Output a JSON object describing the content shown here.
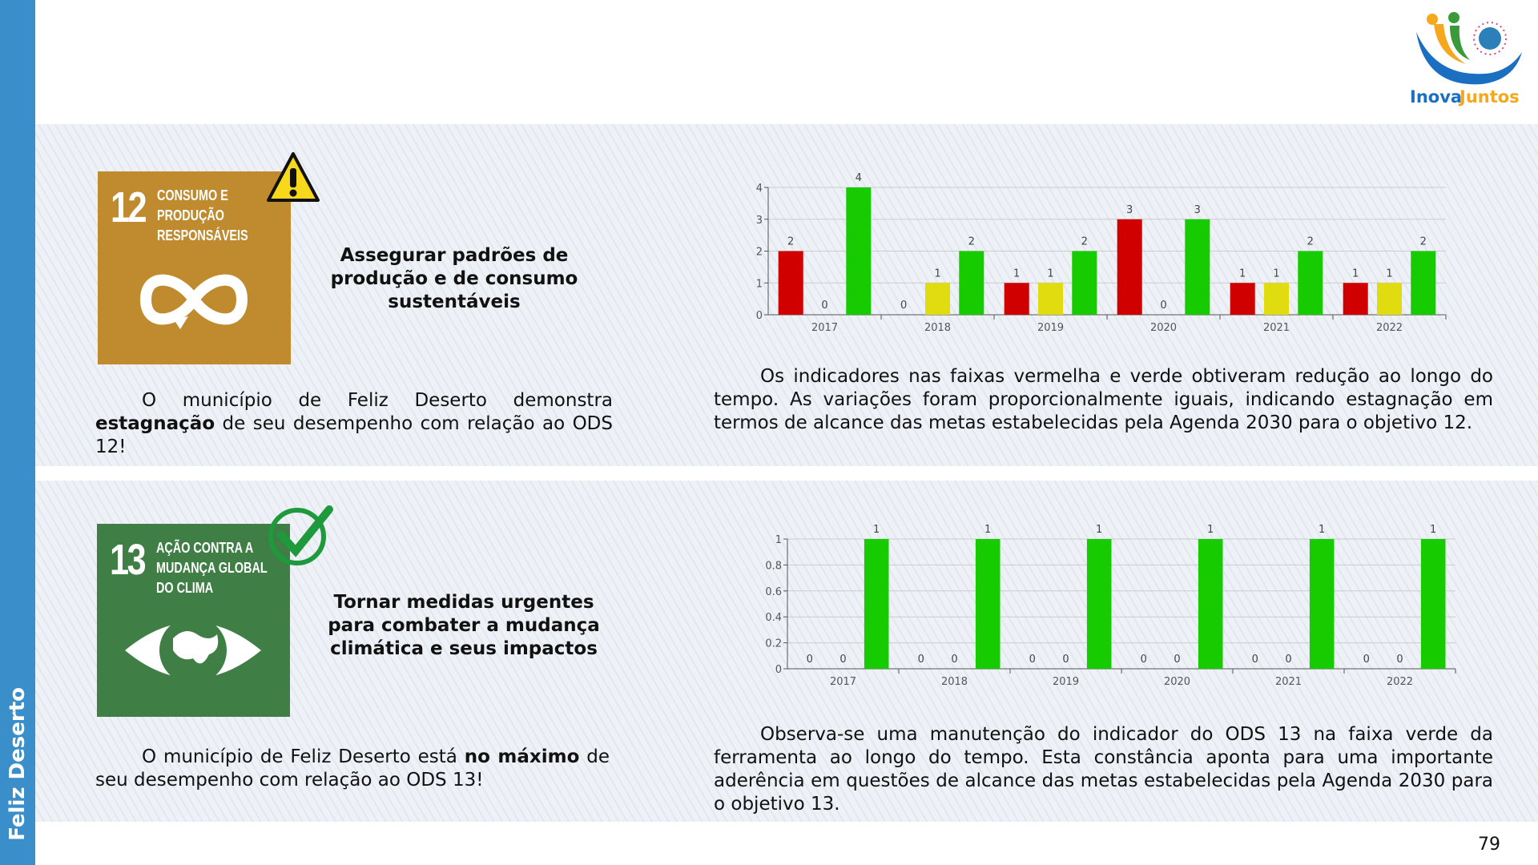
{
  "sidebar": {
    "municipality": "Feliz Deserto"
  },
  "logo": {
    "text_a": "Inova",
    "text_b": "Juntos"
  },
  "page_number": "79",
  "ods12": {
    "number": "12",
    "title": "CONSUMO E\nPRODUÇÃO\nRESPONSÁVEIS",
    "status_icon": "warning-icon",
    "heading": "Assegurar padrões de\nprodução e de consumo\nsustentáveis",
    "text_a": "O município de Feliz Deserto demonstra ",
    "text_bold": "estagnação",
    "text_b": " de seu desempenho com relação ao ODS 12!",
    "analysis": "Os indicadores nas faixas vermelha e verde obtiveram redução ao longo do tempo. As variações foram proporcionalmente iguais, indicando estagnação em termos de alcance das metas estabelecidas pela Agenda 2030 para o objetivo 12.",
    "color": "#bf8b2e"
  },
  "ods13": {
    "number": "13",
    "title": "AÇÃO CONTRA A\nMUDANÇA GLOBAL\nDO CLIMA",
    "status_icon": "check-icon",
    "heading": "Tornar medidas urgentes\npara combater a mudança\nclimática e seus impactos",
    "text_a": "O município de Feliz Deserto está ",
    "text_bold": "no máximo",
    "text_b": " de seu desempenho com relação ao ODS 13!",
    "analysis": "Observa-se uma manutenção do indicador do ODS 13 na faixa verde da ferramenta ao longo do tempo. Esta constância aponta para uma importante aderência em questões de alcance das metas estabelecidas pela Agenda 2030 para o objetivo 13.",
    "color": "#3f7e44"
  },
  "chart_data": [
    {
      "type": "bar",
      "categories": [
        "2017",
        "2018",
        "2019",
        "2020",
        "2021",
        "2022"
      ],
      "ylim": [
        0,
        4
      ],
      "yticks": [
        "0",
        "1",
        "2",
        "3",
        "4"
      ],
      "series": [
        {
          "name": "vermelha",
          "color": "#d00000",
          "values": [
            2,
            0,
            1,
            3,
            1,
            1
          ]
        },
        {
          "name": "amarela",
          "color": "#e0dc10",
          "values": [
            0,
            1,
            1,
            0,
            1,
            1
          ]
        },
        {
          "name": "verde",
          "color": "#16cc00",
          "values": [
            4,
            2,
            2,
            3,
            2,
            2
          ]
        }
      ]
    },
    {
      "type": "bar",
      "categories": [
        "2017",
        "2018",
        "2019",
        "2020",
        "2021",
        "2022"
      ],
      "ylim": [
        0,
        1
      ],
      "yticks": [
        "0",
        "0.2",
        "0.4",
        "0.6",
        "0.8",
        "1"
      ],
      "series": [
        {
          "name": "vermelha",
          "color": "#d00000",
          "values": [
            0,
            0,
            0,
            0,
            0,
            0
          ]
        },
        {
          "name": "amarela",
          "color": "#e0dc10",
          "values": [
            0,
            0,
            0,
            0,
            0,
            0
          ]
        },
        {
          "name": "verde",
          "color": "#16cc00",
          "values": [
            1,
            1,
            1,
            1,
            1,
            1
          ]
        }
      ]
    }
  ]
}
